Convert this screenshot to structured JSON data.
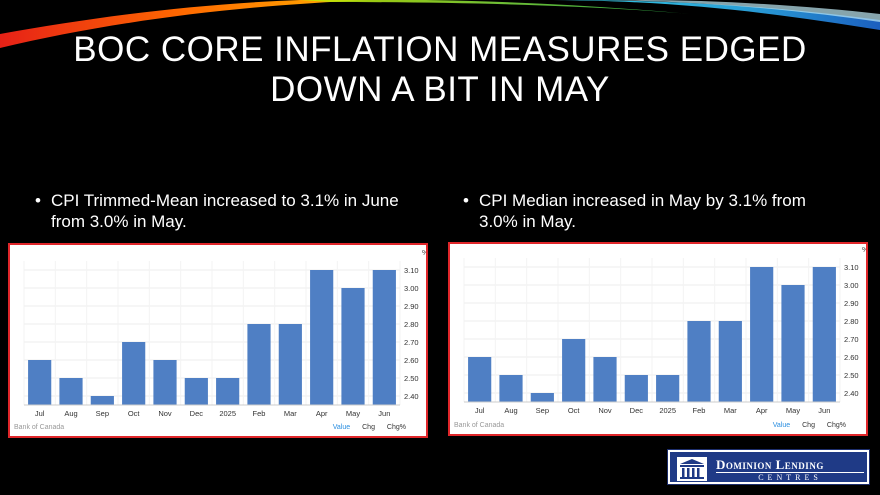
{
  "slide": {
    "title_line1": "BOC CORE INFLATION MEASURES EDGED",
    "title_line2": "DOWN A BIT IN MAY",
    "bullet_left": "CPI Trimmed-Mean increased to 3.1% in June from 3.0% in May.",
    "bullet_right": "CPI Median increased in May by 3.1% from 3.0% in May.",
    "bullet_marker": "•"
  },
  "colors": {
    "bar": "#4f7fc4",
    "frame": "#e0262a",
    "active_tab": "#2a8ee0"
  },
  "footer": {
    "source": "Bank of Canada",
    "tabs": [
      "Value",
      "Chg",
      "Chg%"
    ]
  },
  "logo": {
    "name": "Dominion Lending",
    "sub": "CENTRES",
    "icon": "building-columns-icon"
  },
  "chart_data": [
    {
      "type": "bar",
      "categories": [
        "Jul",
        "Aug",
        "Sep",
        "Oct",
        "Nov",
        "Dec",
        "2025",
        "Feb",
        "Mar",
        "Apr",
        "May",
        "Jun"
      ],
      "values": [
        2.6,
        2.5,
        2.4,
        2.7,
        2.6,
        2.5,
        2.5,
        2.8,
        2.8,
        3.1,
        3.0,
        3.1
      ],
      "unit": "%",
      "yticks": [
        "3.10",
        "3.00",
        "2.90",
        "2.80",
        "2.70",
        "2.60",
        "2.50",
        "2.40"
      ],
      "ylim": [
        2.35,
        3.15
      ],
      "grid": true
    },
    {
      "type": "bar",
      "categories": [
        "Jul",
        "Aug",
        "Sep",
        "Oct",
        "Nov",
        "Dec",
        "2025",
        "Feb",
        "Mar",
        "Apr",
        "May",
        "Jun"
      ],
      "values": [
        2.6,
        2.5,
        2.4,
        2.7,
        2.6,
        2.5,
        2.5,
        2.8,
        2.8,
        3.1,
        3.0,
        3.1
      ],
      "unit": "%",
      "yticks": [
        "3.10",
        "3.00",
        "2.90",
        "2.80",
        "2.70",
        "2.60",
        "2.50",
        "2.40"
      ],
      "ylim": [
        2.35,
        3.15
      ],
      "grid": true
    }
  ]
}
